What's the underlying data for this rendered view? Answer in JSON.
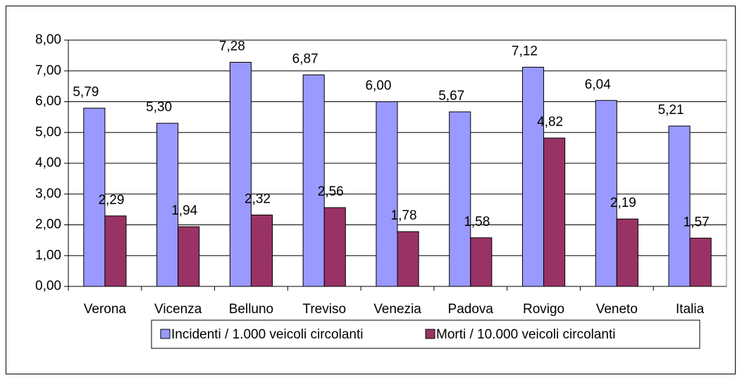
{
  "chart_data": {
    "type": "bar",
    "categories": [
      "Verona",
      "Vicenza",
      "Belluno",
      "Treviso",
      "Venezia",
      "Padova",
      "Rovigo",
      "Veneto",
      "Italia"
    ],
    "series": [
      {
        "name": "Incidenti / 1.000 veicoli circolanti",
        "color": "#9999ff",
        "values": [
          5.79,
          5.3,
          7.28,
          6.87,
          6.0,
          5.67,
          7.12,
          6.04,
          5.21
        ],
        "value_labels": [
          "5,79",
          "5,30",
          "7,28",
          "6,87",
          "6,00",
          "5,67",
          "7,12",
          "6,04",
          "5,21"
        ]
      },
      {
        "name": "Morti / 10.000 veicoli circolanti",
        "color": "#993366",
        "values": [
          2.29,
          1.94,
          2.32,
          2.56,
          1.78,
          1.58,
          4.82,
          2.19,
          1.57
        ],
        "value_labels": [
          "2,29",
          "1,94",
          "2,32",
          "2,56",
          "1,78",
          "1,58",
          "4,82",
          "2,19",
          "1,57"
        ]
      }
    ],
    "ylim": [
      0,
      8
    ],
    "yticks": [
      {
        "value": 0,
        "label": "0,00"
      },
      {
        "value": 1,
        "label": "1,00"
      },
      {
        "value": 2,
        "label": "2,00"
      },
      {
        "value": 3,
        "label": "3,00"
      },
      {
        "value": 4,
        "label": "4,00"
      },
      {
        "value": 5,
        "label": "5,00"
      },
      {
        "value": 6,
        "label": "6,00"
      },
      {
        "value": 7,
        "label": "7,00"
      },
      {
        "value": 8,
        "label": "8,00"
      }
    ],
    "grid": true,
    "legend": "bottom"
  }
}
